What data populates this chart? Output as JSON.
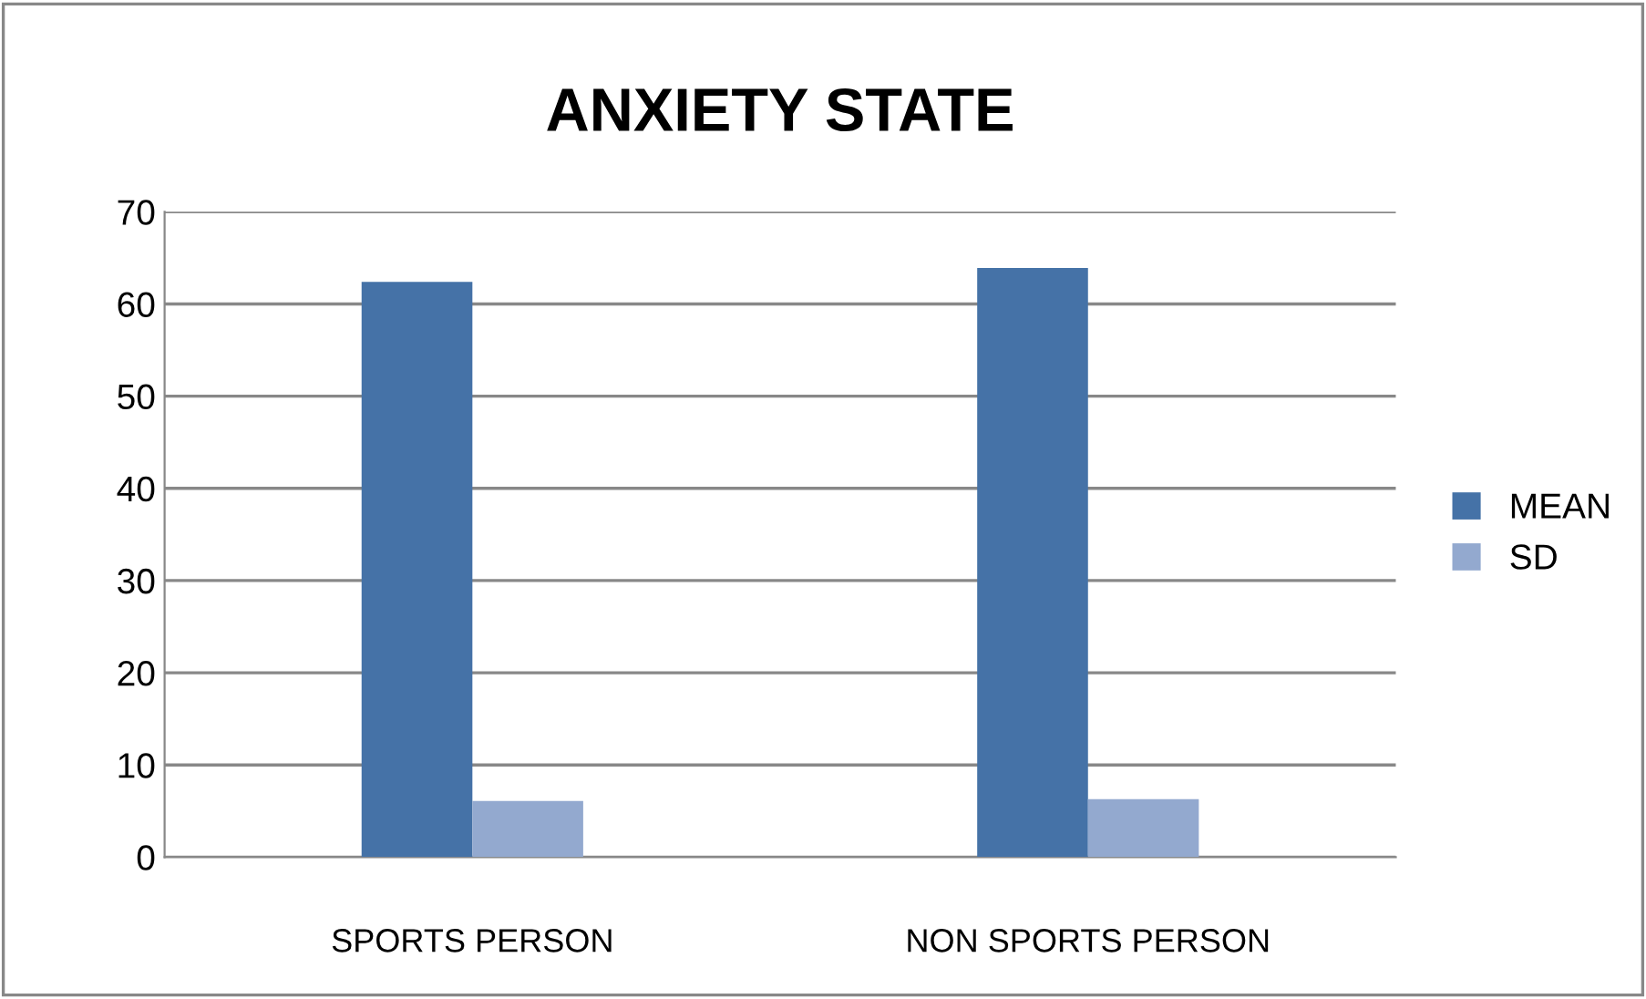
{
  "chart_data": {
    "type": "bar",
    "title": "ANXIETY STATE",
    "categories": [
      "SPORTS PERSON",
      "NON SPORTS PERSON"
    ],
    "series": [
      {
        "name": "MEAN",
        "color": "#4572a7",
        "values": [
          62.4,
          63.9
        ]
      },
      {
        "name": "SD",
        "color": "#93a9cf",
        "values": [
          6.1,
          6.3
        ]
      }
    ],
    "ylim": [
      0,
      70
    ],
    "yticks": [
      0,
      10,
      20,
      30,
      40,
      50,
      60,
      70
    ],
    "grid": "y",
    "legend": "right"
  }
}
